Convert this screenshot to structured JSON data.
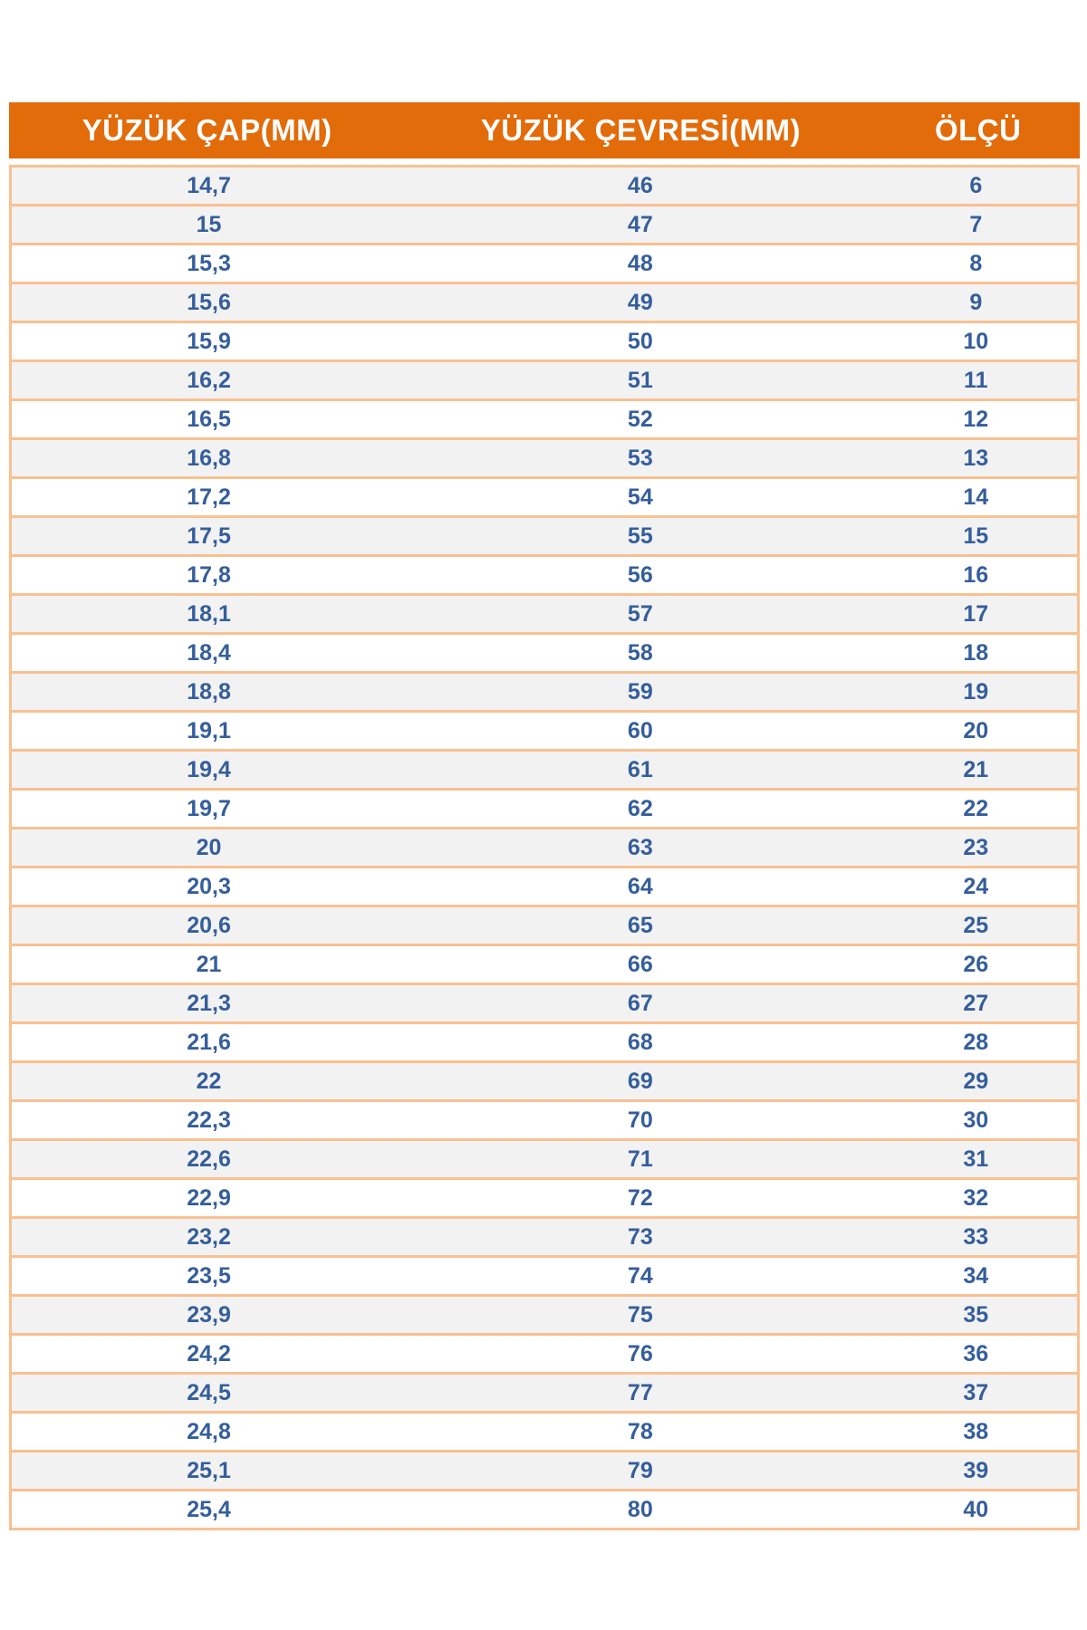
{
  "table": {
    "columns": [
      {
        "label": "YÜZÜK ÇAP(MM)"
      },
      {
        "label": "YÜZÜK ÇEVRESİ(MM)"
      },
      {
        "label": "ÖLÇÜ"
      }
    ],
    "rows": [
      {
        "diameter": "14,7",
        "circumference": "46",
        "size": "6"
      },
      {
        "diameter": "15",
        "circumference": "47",
        "size": "7"
      },
      {
        "diameter": "15,3",
        "circumference": "48",
        "size": "8"
      },
      {
        "diameter": "15,6",
        "circumference": "49",
        "size": "9"
      },
      {
        "diameter": "15,9",
        "circumference": "50",
        "size": "10"
      },
      {
        "diameter": "16,2",
        "circumference": "51",
        "size": "11"
      },
      {
        "diameter": "16,5",
        "circumference": "52",
        "size": "12"
      },
      {
        "diameter": "16,8",
        "circumference": "53",
        "size": "13"
      },
      {
        "diameter": "17,2",
        "circumference": "54",
        "size": "14"
      },
      {
        "diameter": "17,5",
        "circumference": "55",
        "size": "15"
      },
      {
        "diameter": "17,8",
        "circumference": "56",
        "size": "16"
      },
      {
        "diameter": "18,1",
        "circumference": "57",
        "size": "17"
      },
      {
        "diameter": "18,4",
        "circumference": "58",
        "size": "18"
      },
      {
        "diameter": "18,8",
        "circumference": "59",
        "size": "19"
      },
      {
        "diameter": "19,1",
        "circumference": "60",
        "size": "20"
      },
      {
        "diameter": "19,4",
        "circumference": "61",
        "size": "21"
      },
      {
        "diameter": "19,7",
        "circumference": "62",
        "size": "22"
      },
      {
        "diameter": "20",
        "circumference": "63",
        "size": "23"
      },
      {
        "diameter": "20,3",
        "circumference": "64",
        "size": "24"
      },
      {
        "diameter": "20,6",
        "circumference": "65",
        "size": "25"
      },
      {
        "diameter": "21",
        "circumference": "66",
        "size": "26"
      },
      {
        "diameter": "21,3",
        "circumference": "67",
        "size": "27"
      },
      {
        "diameter": "21,6",
        "circumference": "68",
        "size": "28"
      },
      {
        "diameter": "22",
        "circumference": "69",
        "size": "29"
      },
      {
        "diameter": "22,3",
        "circumference": "70",
        "size": "30"
      },
      {
        "diameter": "22,6",
        "circumference": "71",
        "size": "31"
      },
      {
        "diameter": "22,9",
        "circumference": "72",
        "size": "32"
      },
      {
        "diameter": "23,2",
        "circumference": "73",
        "size": "33"
      },
      {
        "diameter": "23,5",
        "circumference": "74",
        "size": "34"
      },
      {
        "diameter": "23,9",
        "circumference": "75",
        "size": "35"
      },
      {
        "diameter": "24,2",
        "circumference": "76",
        "size": "36"
      },
      {
        "diameter": "24,5",
        "circumference": "77",
        "size": "37"
      },
      {
        "diameter": "24,8",
        "circumference": "78",
        "size": "38"
      },
      {
        "diameter": "25,1",
        "circumference": "79",
        "size": "39"
      },
      {
        "diameter": "25,4",
        "circumference": "80",
        "size": "40"
      }
    ],
    "colors": {
      "header_bg": "#E26B0A",
      "header_text": "#FFFFFF",
      "row_border": "#FAC090",
      "band_row_bg": "#F2F2F3",
      "plain_row_bg": "#FFFFFF",
      "cell_text": "#355E9B"
    }
  }
}
